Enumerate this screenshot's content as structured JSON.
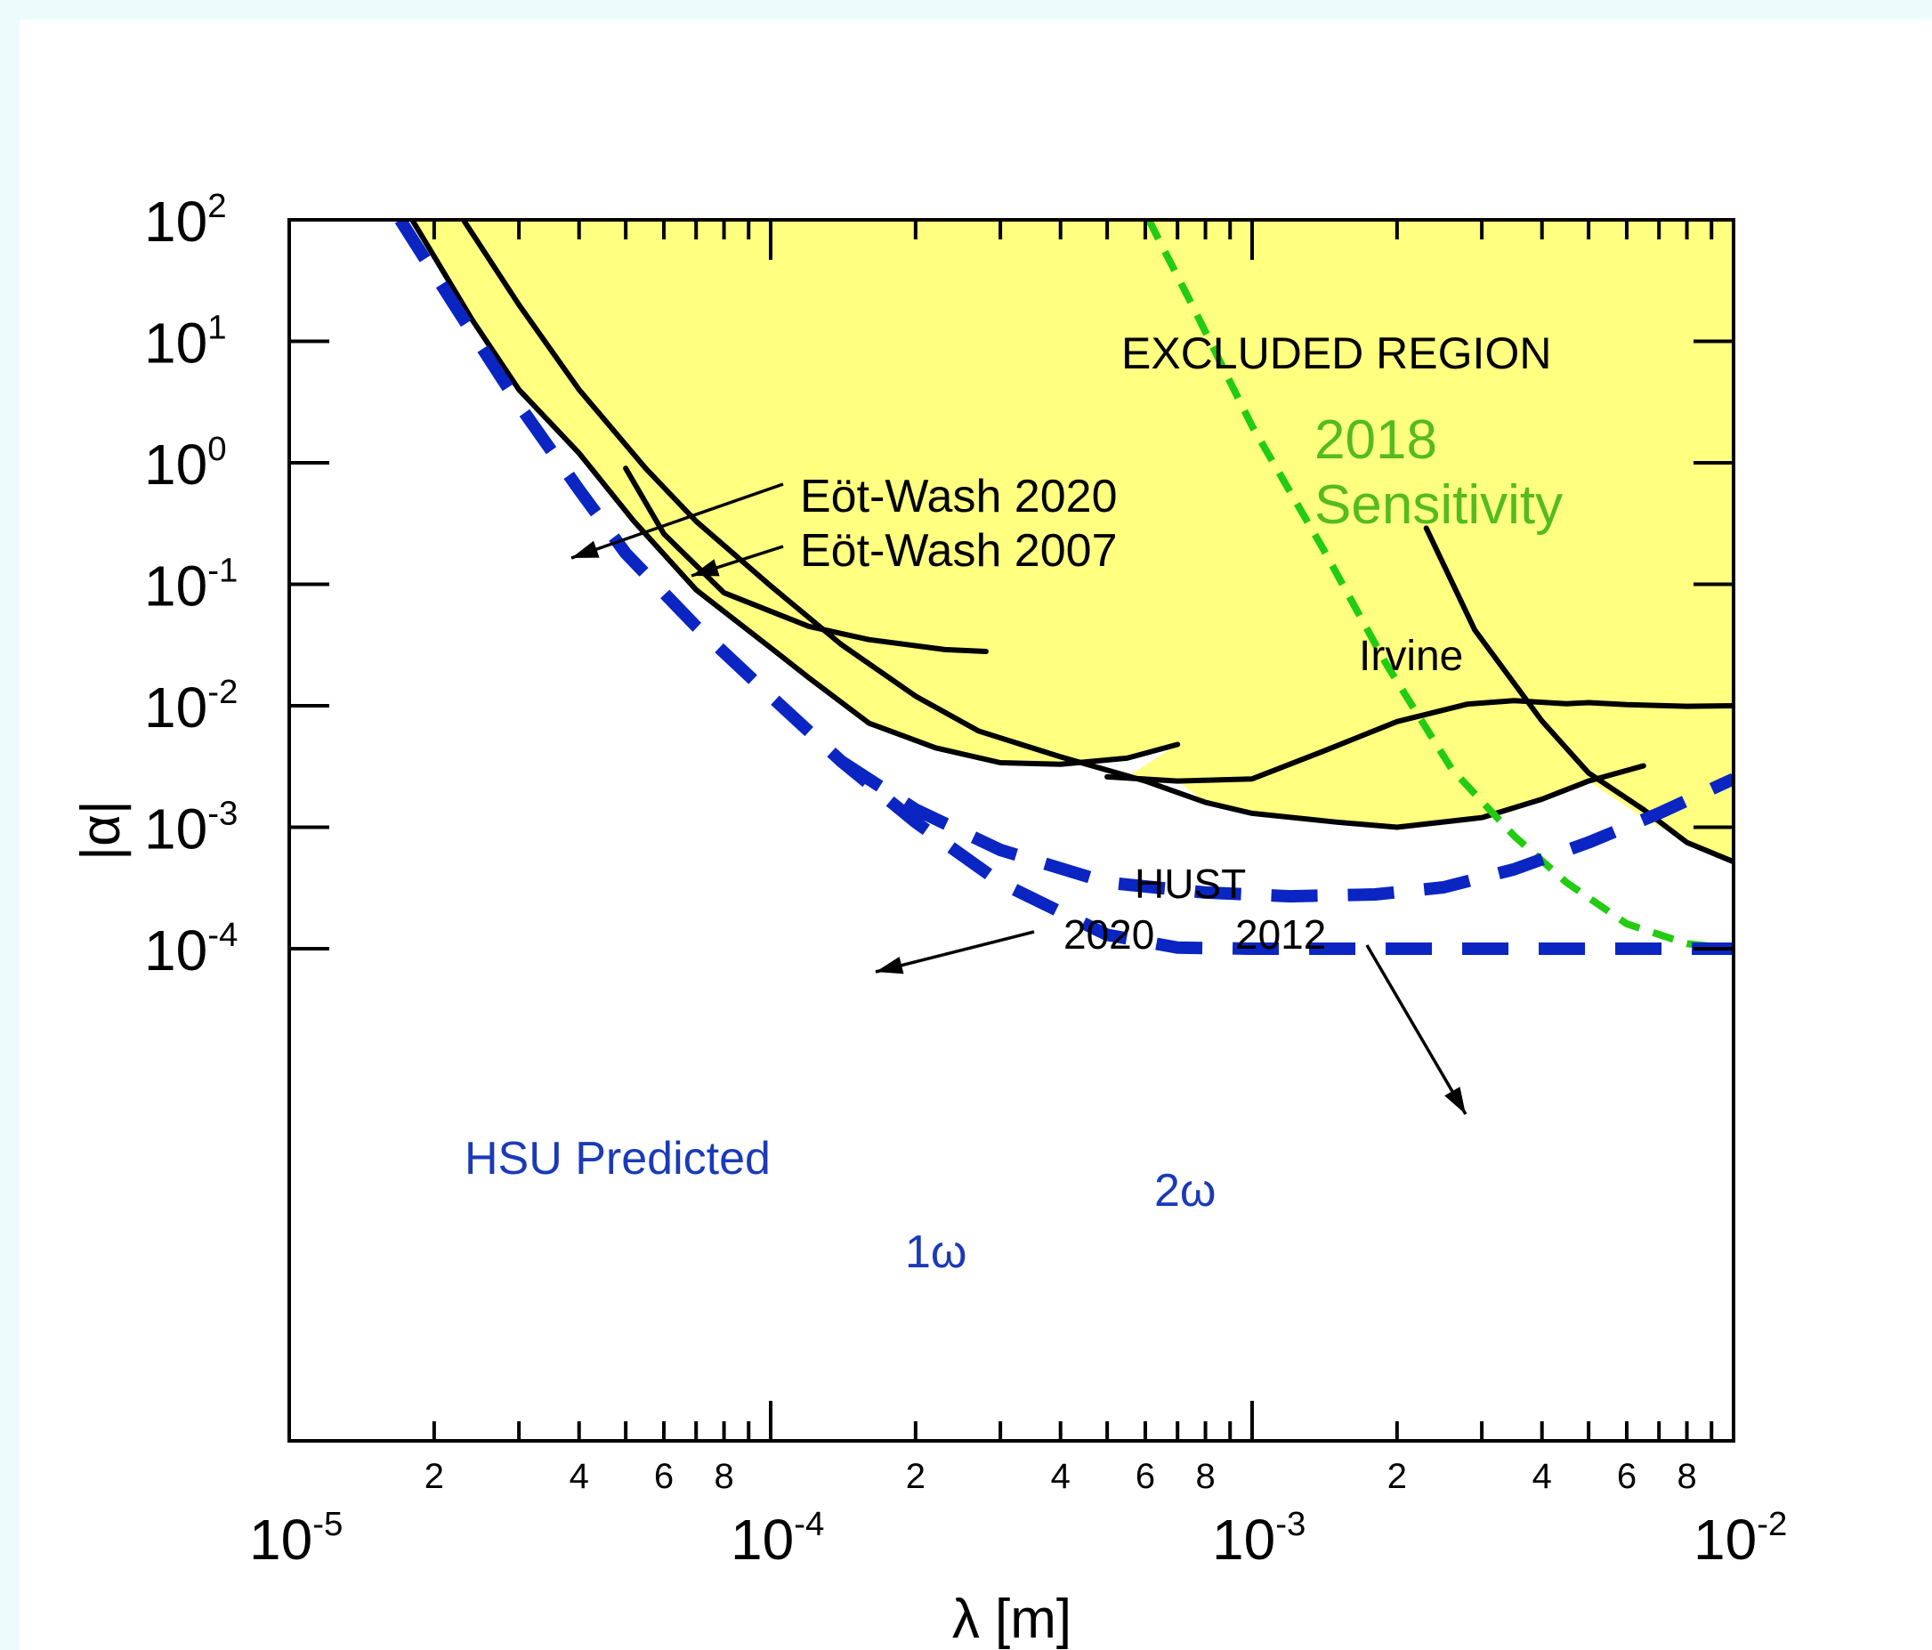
{
  "chart_data": {
    "type": "line",
    "x_scale": "log",
    "y_scale": "log",
    "xlabel": "λ [m]",
    "ylabel": "|α|",
    "xlim": [
      1e-05,
      0.01
    ],
    "ylim": [
      1e-05,
      100
    ],
    "x_major_ticks": [
      {
        "value": 1e-05,
        "base": "10",
        "exp": "-5"
      },
      {
        "value": 0.0001,
        "base": "10",
        "exp": "-4"
      },
      {
        "value": 0.001,
        "base": "10",
        "exp": "-3"
      },
      {
        "value": 0.01,
        "base": "10",
        "exp": "-2"
      }
    ],
    "x_minor_labels": [
      "2",
      "4",
      "6",
      "8"
    ],
    "y_major_ticks": [
      {
        "value": 100,
        "base": "10",
        "exp": "2"
      },
      {
        "value": 10,
        "base": "10",
        "exp": "1"
      },
      {
        "value": 1,
        "base": "10",
        "exp": "0"
      },
      {
        "value": 0.1,
        "base": "10",
        "exp": "-1"
      },
      {
        "value": 0.01,
        "base": "10",
        "exp": "-2"
      },
      {
        "value": 0.001,
        "base": "10",
        "exp": "-3"
      },
      {
        "value": 0.0001,
        "base": "10",
        "exp": "-4"
      }
    ],
    "excluded_region": {
      "label": "EXCLUDED REGION",
      "color": "#ffff80",
      "boundary": [
        [
          1.8e-05,
          100
        ],
        [
          2.4e-05,
          15
        ],
        [
          3e-05,
          4
        ],
        [
          4e-05,
          1.2
        ],
        [
          5.2e-05,
          0.33
        ],
        [
          7e-05,
          0.09
        ],
        [
          0.0001,
          0.03
        ],
        [
          0.00012,
          0.017
        ],
        [
          0.00016,
          0.0072
        ],
        [
          0.00022,
          0.0045
        ],
        [
          0.0003,
          0.0034
        ],
        [
          0.0004,
          0.0033
        ],
        [
          0.00055,
          0.0037
        ],
        [
          0.0007,
          0.0048
        ]
      ]
    },
    "series": [
      {
        "name": "Eöt-Wash 2020",
        "color": "#000000",
        "style": "solid",
        "points": [
          [
            1.8e-05,
            100
          ],
          [
            2.4e-05,
            15
          ],
          [
            3e-05,
            4
          ],
          [
            4e-05,
            1.2
          ],
          [
            5.2e-05,
            0.33
          ],
          [
            7e-05,
            0.09
          ],
          [
            0.0001,
            0.03
          ],
          [
            0.00012,
            0.017
          ],
          [
            0.00016,
            0.0072
          ],
          [
            0.00022,
            0.0045
          ],
          [
            0.0003,
            0.0034
          ],
          [
            0.0004,
            0.0033
          ],
          [
            0.00055,
            0.0037
          ],
          [
            0.0007,
            0.0048
          ]
        ]
      },
      {
        "name": "Eöt-Wash 2007",
        "color": "#000000",
        "style": "solid",
        "points": [
          [
            2.3e-05,
            100
          ],
          [
            3e-05,
            20
          ],
          [
            4e-05,
            4
          ],
          [
            5.5e-05,
            0.9
          ],
          [
            7e-05,
            0.33
          ],
          [
            0.0001,
            0.097
          ],
          [
            0.00014,
            0.032
          ],
          [
            0.0002,
            0.012
          ],
          [
            0.00027,
            0.0062
          ],
          [
            0.0004,
            0.0038
          ],
          [
            0.0006,
            0.0024
          ],
          [
            0.0008,
            0.0016
          ],
          [
            0.001,
            0.0013
          ],
          [
            0.0015,
            0.0011
          ],
          [
            0.002,
            0.001
          ],
          [
            0.003,
            0.0012
          ],
          [
            0.004,
            0.0017
          ],
          [
            0.005,
            0.0024
          ],
          [
            0.0065,
            0.0032
          ]
        ]
      },
      {
        "name": "HUST 2012",
        "color": "#000000",
        "style": "solid",
        "points": [
          [
            5e-05,
            0.9
          ],
          [
            6e-05,
            0.26
          ],
          [
            8e-05,
            0.085
          ],
          [
            0.00012,
            0.045
          ],
          [
            0.00016,
            0.035
          ],
          [
            0.00023,
            0.029
          ],
          [
            0.00028,
            0.028
          ]
        ]
      },
      {
        "name": "HUST 2020",
        "color": "#000000",
        "style": "solid",
        "points": [
          [
            0.0005,
            0.0026
          ],
          [
            0.0007,
            0.0024
          ],
          [
            0.001,
            0.0025
          ],
          [
            0.0014,
            0.0042
          ],
          [
            0.002,
            0.0074
          ],
          [
            0.0028,
            0.0103
          ],
          [
            0.0035,
            0.011
          ],
          [
            0.0045,
            0.0104
          ],
          [
            0.005,
            0.0106
          ],
          [
            0.006,
            0.0102
          ],
          [
            0.008,
            0.0099
          ],
          [
            0.01,
            0.01
          ]
        ]
      },
      {
        "name": "Irvine",
        "color": "#000000",
        "style": "solid",
        "points": [
          [
            0.0023,
            0.29
          ],
          [
            0.0029,
            0.042
          ],
          [
            0.004,
            0.0075
          ],
          [
            0.005,
            0.0028
          ],
          [
            0.0065,
            0.0014
          ],
          [
            0.008,
            0.00075
          ],
          [
            0.01,
            0.00052
          ]
        ]
      },
      {
        "name": "2018 Sensitivity",
        "color": "#22cc11",
        "style": "dashed",
        "points": [
          [
            0.00061,
            100
          ],
          [
            0.00075,
            20
          ],
          [
            0.001,
            2
          ],
          [
            0.0014,
            0.2
          ],
          [
            0.0019,
            0.022
          ],
          [
            0.0026,
            0.003
          ],
          [
            0.0035,
            0.00085
          ],
          [
            0.0045,
            0.00035
          ],
          [
            0.006,
            0.00016
          ],
          [
            0.008,
            0.00011
          ],
          [
            0.01,
            0.0001
          ]
        ]
      },
      {
        "name": "1ω",
        "color": "#0a25c2",
        "style": "dashed",
        "points": [
          [
            1.7e-05,
            100
          ],
          [
            2.2e-05,
            20
          ],
          [
            3e-05,
            3
          ],
          [
            4e-05,
            0.6
          ],
          [
            5e-05,
            0.18
          ],
          [
            7e-05,
            0.045
          ],
          [
            0.0001,
            0.012
          ],
          [
            0.00014,
            0.0035
          ],
          [
            0.0002,
            0.0011
          ],
          [
            0.0003,
            0.00035
          ],
          [
            0.0005,
            0.00013
          ],
          [
            0.0007,
            0.000102
          ],
          [
            0.001,
            0.0001
          ],
          [
            0.002,
            0.0001
          ],
          [
            0.005,
            0.0001
          ],
          [
            0.01,
            0.0001
          ]
        ]
      },
      {
        "name": "2ω",
        "color": "#0a25c2",
        "style": "dashed",
        "points": [
          [
            0.00014,
            0.0035
          ],
          [
            0.0002,
            0.0014
          ],
          [
            0.0003,
            0.00065
          ],
          [
            0.0005,
            0.00035
          ],
          [
            0.0008,
            0.00029
          ],
          [
            0.0012,
            0.00027
          ],
          [
            0.0018,
            0.00028
          ],
          [
            0.0025,
            0.00032
          ],
          [
            0.0035,
            0.00045
          ],
          [
            0.005,
            0.00075
          ],
          [
            0.007,
            0.0013
          ],
          [
            0.01,
            0.0025
          ]
        ]
      }
    ],
    "annotations": {
      "excluded": "EXCLUDED REGION",
      "ew2020": "Eöt-Wash 2020",
      "ew2007": "Eöt-Wash 2007",
      "sens_year": "2018",
      "sens_word": "Sensitivity",
      "irvine": "Irvine",
      "hust": "HUST",
      "hust2020": "2020",
      "hust2012": "2012",
      "hsu": "HSU Predicted",
      "two_omega": "2ω",
      "one_omega": "1ω"
    },
    "colors": {
      "excluded_fill": "#ffff80",
      "green": "#22cc11",
      "green_text": "#55bb1e",
      "blue": "#0a25c2",
      "blue_text": "#1a3ab8",
      "panel_background": "#ffffff",
      "page_background": "#ecfcfd"
    }
  }
}
